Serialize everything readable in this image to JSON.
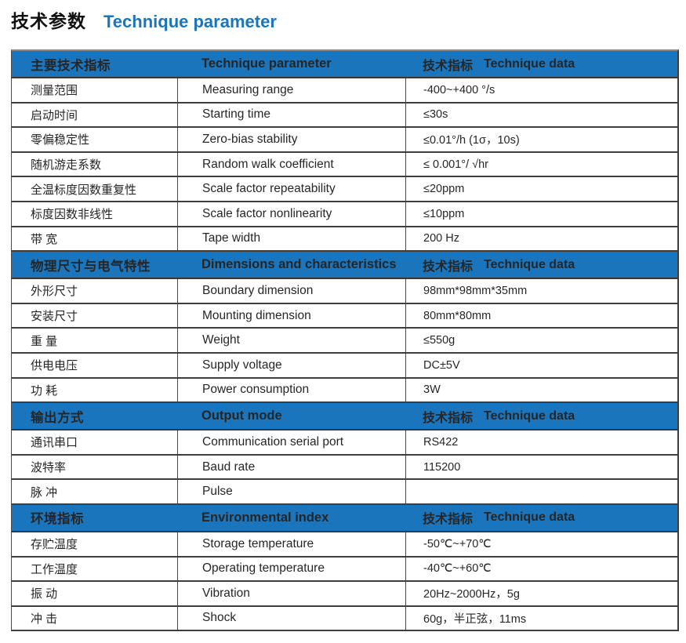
{
  "page_title": {
    "cn": "技术参数",
    "en": "Technique parameter"
  },
  "colors": {
    "accent_blue": "#1b75bc",
    "row_border": "#3d3d3d",
    "body_text": "#262626"
  },
  "table": {
    "spec_header": {
      "cn": "技术指标",
      "en": "Technique data"
    },
    "sections": [
      {
        "header": {
          "cn": "主要技术指标",
          "en": "Technique parameter"
        },
        "rows": [
          {
            "cn": "测量范围",
            "en": "Measuring range",
            "value": "-400~+400 °/s"
          },
          {
            "cn": "启动时间",
            "en": "Starting time",
            "value": "≤30s"
          },
          {
            "cn": "零偏稳定性",
            "en": "Zero-bias stability",
            "value": "≤0.01°/h (1σ，10s)"
          },
          {
            "cn": "随机游走系数",
            "en": "Random walk coefficient",
            "value": "≤ 0.001°/ √hr"
          },
          {
            "cn": "全温标度因数重复性",
            "en": "Scale factor repeatability",
            "value": "≤20ppm"
          },
          {
            "cn": "标度因数非线性",
            "en": "Scale factor nonlinearity",
            "value": "≤10ppm"
          },
          {
            "cn": "带 宽",
            "en": "Tape width",
            "value": "200 Hz"
          }
        ]
      },
      {
        "header": {
          "cn": "物理尺寸与电气特性",
          "en": "Dimensions and characteristics"
        },
        "rows": [
          {
            "cn": "外形尺寸",
            "en": "Boundary dimension",
            "value": "98mm*98mm*35mm"
          },
          {
            "cn": "安装尺寸",
            "en": "Mounting dimension",
            "value": "80mm*80mm"
          },
          {
            "cn": "重 量",
            "en": "Weight",
            "value": "≤550g"
          },
          {
            "cn": "供电电压",
            "en": "Supply voltage",
            "value": "DC±5V"
          },
          {
            "cn": "功 耗",
            "en": "Power consumption",
            "value": "3W"
          }
        ]
      },
      {
        "header": {
          "cn": "输出方式",
          "en": "Output mode"
        },
        "rows": [
          {
            "cn": "通讯串口",
            "en": "Communication serial port",
            "value": "RS422"
          },
          {
            "cn": "波特率",
            "en": "Baud rate",
            "value": "115200"
          },
          {
            "cn": "脉 冲",
            "en": "Pulse",
            "value": ""
          }
        ]
      },
      {
        "header": {
          "cn": "环境指标",
          "en": "Environmental index"
        },
        "rows": [
          {
            "cn": "存贮温度",
            "en": "Storage temperature",
            "value": "-50℃~+70℃"
          },
          {
            "cn": "工作温度",
            "en": "Operating temperature",
            "value": "-40℃~+60℃"
          },
          {
            "cn": "振 动",
            "en": "Vibration",
            "value": "20Hz~2000Hz，5g"
          },
          {
            "cn": "冲 击",
            "en": "Shock",
            "value": "60g，半正弦，11ms"
          }
        ]
      }
    ]
  }
}
